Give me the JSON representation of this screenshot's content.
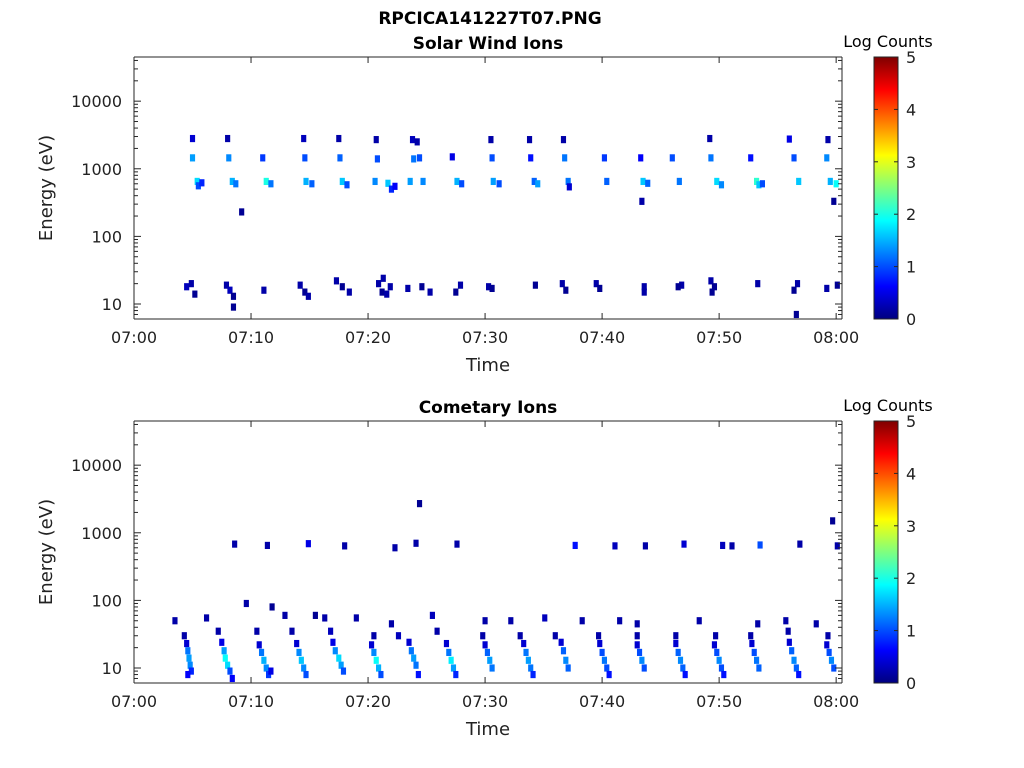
{
  "figure_title": "RPCICA141227T07.PNG",
  "colormap": [
    "#00007f",
    "#0000ff",
    "#007fff",
    "#00ffff",
    "#7fff7f",
    "#ffff00",
    "#ff7f00",
    "#ff0000",
    "#7f0000"
  ],
  "chart_data": [
    {
      "type": "heatmap",
      "title": "Solar Wind Ions",
      "xlabel": "Time",
      "ylabel": "Energy (eV)",
      "x_tick_labels": [
        "07:00",
        "07:10",
        "07:20",
        "07:30",
        "07:40",
        "07:50",
        "08:00"
      ],
      "x_ticks_min": [
        0,
        10,
        20,
        30,
        40,
        50,
        60
      ],
      "xlim_min": [
        0,
        60.5
      ],
      "y_scale": "log",
      "y_ticks": [
        10,
        100,
        1000,
        10000
      ],
      "y_tick_labels": [
        "10",
        "100",
        "1000",
        "10000"
      ],
      "ylim": [
        6,
        45000
      ],
      "colorbar": {
        "label": "Log Counts",
        "range": [
          0,
          5
        ],
        "tick_labels": [
          "0",
          "1",
          "2",
          "3",
          "4",
          "5"
        ]
      },
      "cell_schema": [
        "time_min",
        "energy_eV",
        "log_counts"
      ],
      "cells": [
        [
          5.0,
          2800,
          0.4
        ],
        [
          5.0,
          1450,
          1.4
        ],
        [
          5.4,
          650,
          1.7
        ],
        [
          5.5,
          560,
          1.0
        ],
        [
          5.8,
          620,
          0.8
        ],
        [
          4.5,
          18,
          0.3
        ],
        [
          4.9,
          20,
          0.2
        ],
        [
          5.2,
          14,
          0.1
        ],
        [
          8.0,
          2800,
          0.2
        ],
        [
          8.1,
          1450,
          1.3
        ],
        [
          8.4,
          650,
          1.5
        ],
        [
          8.7,
          600,
          1.2
        ],
        [
          9.2,
          230,
          0.1
        ],
        [
          7.9,
          19,
          0.2
        ],
        [
          8.2,
          16,
          0.3
        ],
        [
          8.5,
          13,
          0.1
        ],
        [
          8.5,
          9,
          0.1
        ],
        [
          11.0,
          1450,
          0.9
        ],
        [
          11.3,
          650,
          2.0
        ],
        [
          11.7,
          600,
          1.2
        ],
        [
          11.1,
          16,
          0.2
        ],
        [
          14.5,
          2800,
          0.3
        ],
        [
          14.6,
          1450,
          1.0
        ],
        [
          14.7,
          650,
          1.5
        ],
        [
          15.2,
          600,
          1.1
        ],
        [
          14.2,
          19,
          0.2
        ],
        [
          14.6,
          15,
          0.1
        ],
        [
          14.9,
          13,
          0.2
        ],
        [
          17.5,
          2800,
          0.2
        ],
        [
          17.6,
          1450,
          1.1
        ],
        [
          17.8,
          650,
          1.6
        ],
        [
          18.2,
          580,
          1.0
        ],
        [
          17.3,
          22,
          0.2
        ],
        [
          17.8,
          18,
          0.1
        ],
        [
          18.4,
          15,
          0.2
        ],
        [
          20.7,
          2700,
          0.2
        ],
        [
          20.8,
          1400,
          1.0
        ],
        [
          20.6,
          650,
          1.3
        ],
        [
          21.7,
          610,
          1.6
        ],
        [
          22.0,
          500,
          0.8
        ],
        [
          20.9,
          20,
          0.2
        ],
        [
          21.3,
          24,
          0.2
        ],
        [
          21.2,
          15,
          0.1
        ],
        [
          21.6,
          14,
          0.2
        ],
        [
          21.9,
          18,
          0.2
        ],
        [
          23.8,
          2700,
          0.3
        ],
        [
          24.2,
          2500,
          0.2
        ],
        [
          23.9,
          1400,
          1.2
        ],
        [
          24.4,
          1450,
          1.0
        ],
        [
          23.6,
          650,
          1.4
        ],
        [
          24.7,
          650,
          1.3
        ],
        [
          22.3,
          550,
          0.6
        ],
        [
          23.4,
          17,
          0.2
        ],
        [
          24.6,
          18,
          0.1
        ],
        [
          25.3,
          15,
          0.2
        ],
        [
          27.2,
          1500,
          0.5
        ],
        [
          27.9,
          19,
          0.2
        ],
        [
          27.5,
          15,
          0.1
        ],
        [
          27.6,
          650,
          1.5
        ],
        [
          28.0,
          600,
          1.0
        ],
        [
          30.5,
          2700,
          0.2
        ],
        [
          30.6,
          1450,
          1.0
        ],
        [
          30.7,
          650,
          1.4
        ],
        [
          31.2,
          600,
          1.0
        ],
        [
          30.3,
          18,
          0.2
        ],
        [
          30.6,
          17,
          0.1
        ],
        [
          33.8,
          2700,
          0.2
        ],
        [
          33.9,
          1450,
          0.7
        ],
        [
          34.2,
          650,
          1.1
        ],
        [
          34.5,
          600,
          1.4
        ],
        [
          34.3,
          19,
          0.1
        ],
        [
          36.7,
          2700,
          0.2
        ],
        [
          36.8,
          1450,
          1.2
        ],
        [
          37.1,
          650,
          1.2
        ],
        [
          37.2,
          540,
          0.4
        ],
        [
          36.6,
          20,
          0.2
        ],
        [
          36.9,
          16,
          0.1
        ],
        [
          39.5,
          20,
          0.2
        ],
        [
          39.8,
          17,
          0.1
        ],
        [
          40.2,
          1450,
          0.9
        ],
        [
          40.4,
          650,
          1.1
        ],
        [
          43.3,
          1450,
          0.6
        ],
        [
          43.5,
          650,
          1.6
        ],
        [
          43.9,
          610,
          1.1
        ],
        [
          43.4,
          330,
          0.2
        ],
        [
          43.6,
          18,
          0.2
        ],
        [
          43.6,
          15,
          0.2
        ],
        [
          46.0,
          1450,
          1.0
        ],
        [
          46.6,
          650,
          1.2
        ],
        [
          46.8,
          19,
          0.2
        ],
        [
          46.5,
          18,
          0.1
        ],
        [
          49.2,
          2800,
          0.2
        ],
        [
          49.3,
          1450,
          1.2
        ],
        [
          49.8,
          650,
          1.7
        ],
        [
          50.2,
          580,
          1.3
        ],
        [
          49.3,
          22,
          0.2
        ],
        [
          49.6,
          18,
          0.1
        ],
        [
          49.4,
          15,
          0.1
        ],
        [
          52.7,
          1450,
          0.7
        ],
        [
          53.2,
          650,
          2.1
        ],
        [
          53.4,
          580,
          1.6
        ],
        [
          53.7,
          600,
          1.0
        ],
        [
          53.3,
          20,
          0.2
        ],
        [
          56.0,
          2750,
          0.5
        ],
        [
          56.4,
          1450,
          1.0
        ],
        [
          56.8,
          650,
          1.6
        ],
        [
          56.7,
          20,
          0.2
        ],
        [
          56.4,
          16,
          0.1
        ],
        [
          56.6,
          7,
          0.1
        ],
        [
          59.3,
          2700,
          0.2
        ],
        [
          59.2,
          1450,
          1.3
        ],
        [
          59.5,
          650,
          1.5
        ],
        [
          60.0,
          600,
          1.9
        ],
        [
          59.8,
          330,
          0.1
        ],
        [
          59.2,
          17,
          0.2
        ],
        [
          60.1,
          19,
          0.1
        ]
      ]
    },
    {
      "type": "heatmap",
      "title": "Cometary Ions",
      "xlabel": "Time",
      "ylabel": "Energy (eV)",
      "x_tick_labels": [
        "07:00",
        "07:10",
        "07:20",
        "07:30",
        "07:40",
        "07:50",
        "08:00"
      ],
      "x_ticks_min": [
        0,
        10,
        20,
        30,
        40,
        50,
        60
      ],
      "xlim_min": [
        0,
        60.5
      ],
      "y_scale": "log",
      "y_ticks": [
        10,
        100,
        1000,
        10000
      ],
      "y_tick_labels": [
        "10",
        "100",
        "1000",
        "10000"
      ],
      "ylim": [
        6,
        45000
      ],
      "colorbar": {
        "label": "Log Counts",
        "range": [
          0,
          5
        ],
        "tick_labels": [
          "0",
          "1",
          "2",
          "3",
          "4",
          "5"
        ]
      },
      "cell_schema": [
        "time_min",
        "energy_eV",
        "log_counts"
      ],
      "cells": [
        [
          8.6,
          680,
          0.2
        ],
        [
          11.4,
          650,
          0.2
        ],
        [
          14.9,
          690,
          0.5
        ],
        [
          18.0,
          640,
          0.2
        ],
        [
          22.3,
          600,
          0.2
        ],
        [
          24.4,
          2700,
          0.1
        ],
        [
          24.1,
          700,
          0.2
        ],
        [
          27.6,
          680,
          0.2
        ],
        [
          37.7,
          650,
          0.7
        ],
        [
          41.1,
          640,
          0.3
        ],
        [
          43.7,
          640,
          0.2
        ],
        [
          47.0,
          680,
          0.4
        ],
        [
          50.3,
          650,
          0.3
        ],
        [
          51.1,
          640,
          0.2
        ],
        [
          53.5,
          660,
          1.0
        ],
        [
          56.9,
          680,
          0.2
        ],
        [
          59.7,
          1500,
          0.1
        ],
        [
          60.1,
          640,
          0.2
        ],
        [
          9.6,
          90,
          0.2
        ],
        [
          11.8,
          80,
          0.1
        ],
        [
          12.9,
          60,
          0.2
        ],
        [
          15.5,
          60,
          0.1
        ],
        [
          16.3,
          55,
          0.2
        ],
        [
          19.0,
          55,
          0.2
        ],
        [
          22.0,
          45,
          0.2
        ],
        [
          25.5,
          60,
          0.3
        ],
        [
          30.0,
          50,
          0.2
        ],
        [
          32.2,
          50,
          0.2
        ],
        [
          35.1,
          55,
          0.3
        ],
        [
          38.3,
          50,
          0.2
        ],
        [
          41.5,
          50,
          0.2
        ],
        [
          43.0,
          45,
          0.2
        ],
        [
          48.3,
          50,
          0.2
        ],
        [
          53.3,
          45,
          0.2
        ],
        [
          55.7,
          50,
          0.2
        ],
        [
          58.3,
          45,
          0.2
        ],
        [
          6.2,
          55,
          0.2
        ],
        [
          3.5,
          50,
          0.2
        ],
        [
          4.3,
          30,
          0.2
        ],
        [
          7.2,
          35,
          0.2
        ],
        [
          10.5,
          35,
          0.2
        ],
        [
          13.5,
          35,
          0.2
        ],
        [
          16.8,
          35,
          0.3
        ],
        [
          20.5,
          30,
          0.2
        ],
        [
          22.6,
          30,
          0.3
        ],
        [
          25.9,
          35,
          0.2
        ],
        [
          29.8,
          30,
          0.2
        ],
        [
          33.0,
          30,
          0.2
        ],
        [
          36.0,
          30,
          0.2
        ],
        [
          39.7,
          30,
          0.2
        ],
        [
          43.0,
          30,
          0.2
        ],
        [
          46.3,
          30,
          0.2
        ],
        [
          49.7,
          30,
          0.2
        ],
        [
          52.7,
          30,
          0.2
        ],
        [
          55.9,
          35,
          0.2
        ],
        [
          59.3,
          30,
          0.2
        ],
        [
          4.5,
          23,
          0.4
        ],
        [
          4.6,
          18,
          1.2
        ],
        [
          4.7,
          14,
          1.4
        ],
        [
          4.8,
          11,
          1.3
        ],
        [
          4.9,
          9,
          0.8
        ],
        [
          4.6,
          8,
          0.6
        ],
        [
          7.5,
          24,
          0.5
        ],
        [
          7.7,
          18,
          1.4
        ],
        [
          7.8,
          14,
          1.9
        ],
        [
          8.0,
          11,
          1.7
        ],
        [
          8.2,
          9,
          1.0
        ],
        [
          8.4,
          7,
          0.6
        ],
        [
          10.7,
          22,
          0.4
        ],
        [
          10.9,
          17,
          1.2
        ],
        [
          11.1,
          13,
          1.5
        ],
        [
          11.3,
          10,
          1.3
        ],
        [
          11.5,
          8,
          0.9
        ],
        [
          11.7,
          9,
          0.5
        ],
        [
          13.9,
          23,
          0.4
        ],
        [
          14.1,
          17,
          1.3
        ],
        [
          14.3,
          13,
          1.6
        ],
        [
          14.5,
          10,
          1.3
        ],
        [
          14.7,
          8,
          1.0
        ],
        [
          17.0,
          24,
          0.5
        ],
        [
          17.2,
          18,
          1.3
        ],
        [
          17.5,
          14,
          1.7
        ],
        [
          17.7,
          11,
          1.4
        ],
        [
          17.9,
          9,
          1.0
        ],
        [
          20.3,
          22,
          0.4
        ],
        [
          20.5,
          17,
          1.3
        ],
        [
          20.7,
          13,
          1.9
        ],
        [
          20.9,
          10,
          1.5
        ],
        [
          21.1,
          8,
          1.0
        ],
        [
          23.5,
          24,
          0.4
        ],
        [
          23.7,
          18,
          1.2
        ],
        [
          23.9,
          14,
          1.4
        ],
        [
          24.1,
          11,
          1.2
        ],
        [
          24.3,
          8,
          0.7
        ],
        [
          26.7,
          23,
          0.4
        ],
        [
          26.9,
          17,
          1.2
        ],
        [
          27.1,
          13,
          1.8
        ],
        [
          27.3,
          10,
          1.4
        ],
        [
          27.5,
          8,
          0.8
        ],
        [
          30.0,
          22,
          0.4
        ],
        [
          30.2,
          17,
          1.1
        ],
        [
          30.4,
          13,
          1.4
        ],
        [
          30.6,
          10,
          1.2
        ],
        [
          33.3,
          23,
          0.4
        ],
        [
          33.5,
          17,
          1.2
        ],
        [
          33.7,
          13,
          1.4
        ],
        [
          33.9,
          10,
          1.2
        ],
        [
          34.1,
          8,
          0.8
        ],
        [
          36.5,
          24,
          0.4
        ],
        [
          36.7,
          18,
          1.1
        ],
        [
          36.9,
          13,
          1.3
        ],
        [
          37.1,
          10,
          1.1
        ],
        [
          39.8,
          23,
          0.4
        ],
        [
          40.0,
          17,
          1.0
        ],
        [
          40.2,
          13,
          1.2
        ],
        [
          40.4,
          10,
          1.0
        ],
        [
          40.6,
          8,
          0.7
        ],
        [
          43.0,
          22,
          0.4
        ],
        [
          43.2,
          17,
          1.0
        ],
        [
          43.4,
          13,
          1.3
        ],
        [
          43.6,
          10,
          1.0
        ],
        [
          46.3,
          23,
          0.4
        ],
        [
          46.5,
          17,
          1.1
        ],
        [
          46.7,
          13,
          1.3
        ],
        [
          46.9,
          10,
          1.1
        ],
        [
          47.1,
          8,
          0.7
        ],
        [
          49.6,
          22,
          0.4
        ],
        [
          49.8,
          17,
          1.0
        ],
        [
          50.0,
          13,
          1.3
        ],
        [
          50.2,
          10,
          1.0
        ],
        [
          50.4,
          8,
          0.7
        ],
        [
          52.8,
          23,
          0.4
        ],
        [
          53.0,
          17,
          1.0
        ],
        [
          53.2,
          13,
          1.2
        ],
        [
          53.4,
          10,
          1.1
        ],
        [
          56.0,
          24,
          0.4
        ],
        [
          56.2,
          18,
          1.1
        ],
        [
          56.4,
          13,
          1.3
        ],
        [
          56.6,
          10,
          1.1
        ],
        [
          56.8,
          8,
          0.7
        ],
        [
          59.2,
          22,
          0.4
        ],
        [
          59.4,
          17,
          1.0
        ],
        [
          59.6,
          13,
          1.3
        ],
        [
          59.8,
          10,
          1.0
        ]
      ]
    }
  ]
}
